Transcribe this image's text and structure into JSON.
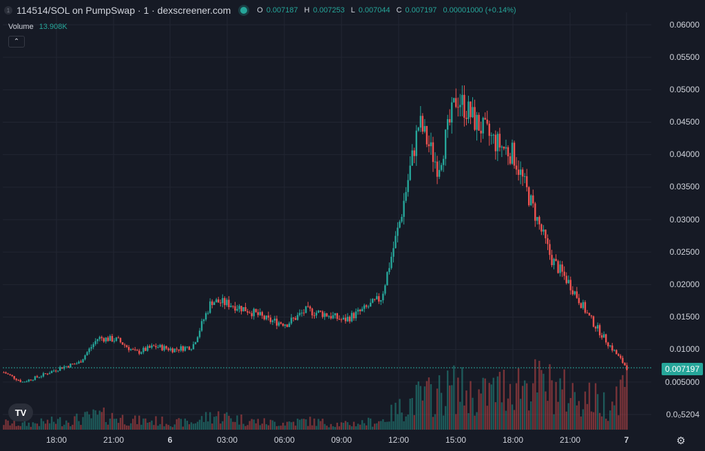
{
  "header": {
    "badge": "1",
    "title": "114514/SOL on PumpSwap · 1 · dexscreener.com",
    "ohlc": {
      "o_label": "O",
      "o_value": "0.007187",
      "h_label": "H",
      "h_value": "0.007253",
      "l_label": "L",
      "l_value": "0.007044",
      "c_label": "C",
      "c_value": "0.007197",
      "change": "0.00001000 (+0.14%)"
    }
  },
  "volume": {
    "label": "Volume",
    "value": "13.908K"
  },
  "collapse_icon": "chevron-up-icon",
  "logo_text": "TV",
  "price_axis": {
    "labels": [
      "0.06000",
      "0.05500",
      "0.05000",
      "0.04500",
      "0.04000",
      "0.03500",
      "0.03000",
      "0.02500",
      "0.02000",
      "0.01500",
      "0.01000",
      "0.005000",
      "0.0₀5204"
    ],
    "last_price": "0.007197"
  },
  "time_axis": {
    "labels": [
      "18:00",
      "21:00",
      "6",
      "03:00",
      "06:00",
      "09:00",
      "12:00",
      "15:00",
      "18:00",
      "21:00",
      "7"
    ]
  },
  "colors": {
    "up": "#26a69a",
    "down": "#ef5350",
    "background": "#161a25",
    "grid": "#222632"
  },
  "chart_data": {
    "type": "candlestick",
    "ylim": [
      0,
      0.06
    ],
    "x": [
      "15:30",
      "16:30",
      "17:30",
      "18:30",
      "19:30",
      "20:30",
      "21:30",
      "22:30",
      "23:30",
      "00:30",
      "01:30",
      "02:30",
      "03:30",
      "04:30",
      "05:30",
      "06:30",
      "07:30",
      "08:30",
      "09:30",
      "10:30",
      "11:30",
      "12:30",
      "13:30",
      "14:30",
      "15:30",
      "16:30",
      "17:30",
      "18:30",
      "19:30",
      "20:30",
      "21:30",
      "22:30",
      "23:00",
      "23:30"
    ],
    "close": [
      0.0065,
      0.005,
      0.006,
      0.0072,
      0.008,
      0.0118,
      0.0115,
      0.0095,
      0.0105,
      0.01,
      0.0105,
      0.0175,
      0.017,
      0.016,
      0.0145,
      0.014,
      0.016,
      0.0155,
      0.0145,
      0.016,
      0.018,
      0.03,
      0.045,
      0.038,
      0.049,
      0.045,
      0.042,
      0.04,
      0.032,
      0.024,
      0.02,
      0.015,
      0.011,
      0.0072
    ],
    "volume_series_name": "Volume",
    "volume": [
      2.0,
      1.5,
      2.0,
      2.5,
      3.0,
      4.0,
      3.5,
      2.5,
      2.5,
      2.0,
      2.0,
      4.0,
      3.5,
      2.5,
      2.0,
      2.0,
      2.5,
      2.0,
      1.5,
      2.0,
      2.5,
      6.0,
      9.0,
      10.0,
      12.0,
      9.0,
      11.0,
      13.0,
      13.0,
      12.0,
      10.0,
      9.0,
      7.0,
      13.908
    ]
  }
}
